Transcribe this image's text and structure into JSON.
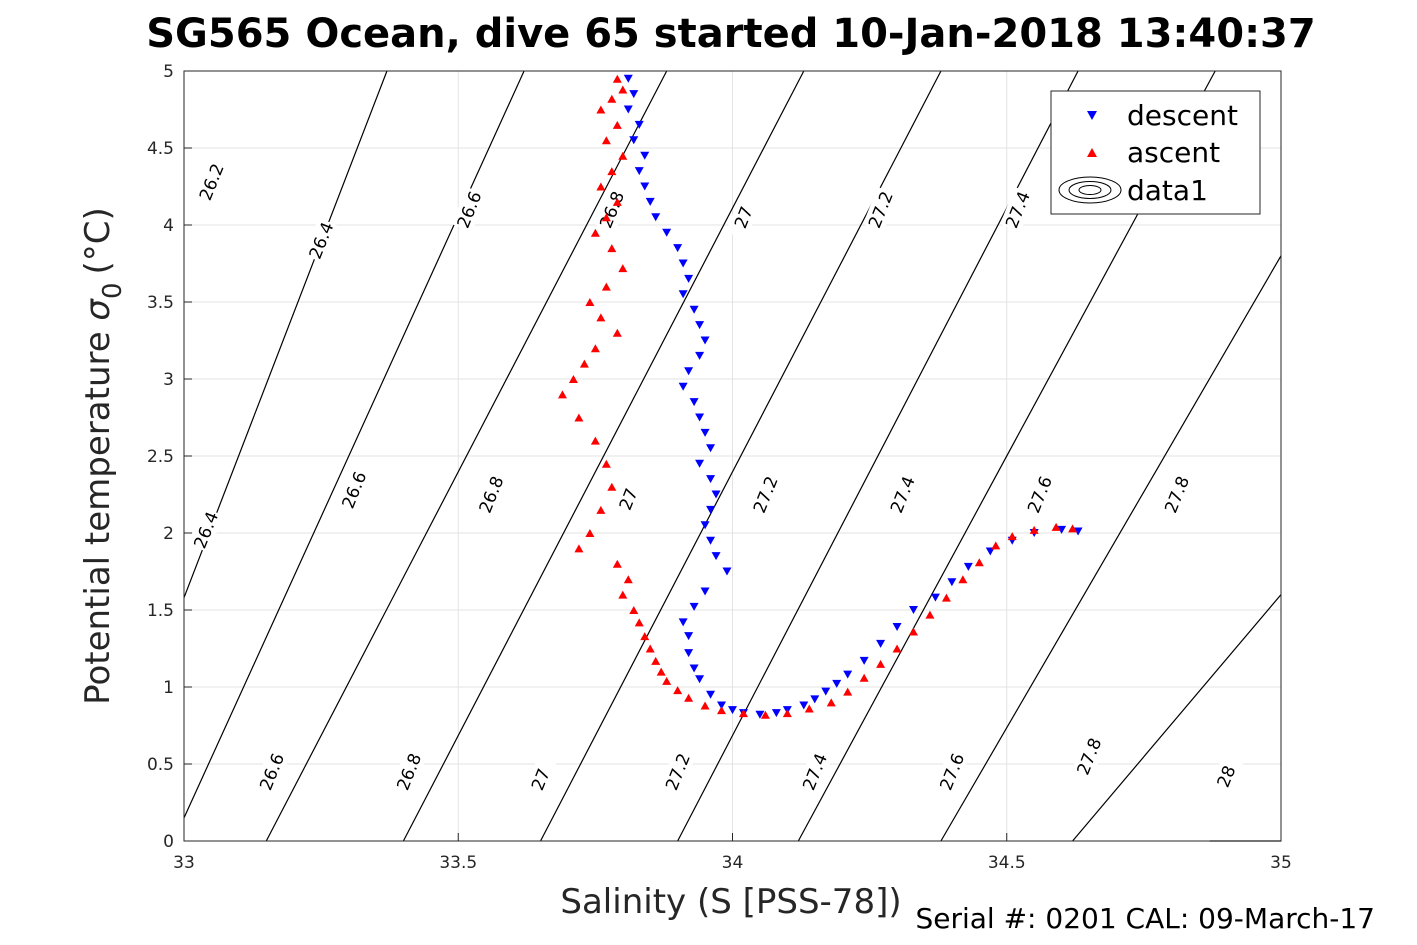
{
  "chart_data": {
    "type": "scatter",
    "title": "SG565 Ocean, dive 65 started 10-Jan-2018 13:40:37",
    "xlabel": "Salinity (S [PSS-78])",
    "ylabel": "Potential temperature",
    "ylabel_symbol": "σ",
    "ylabel_subscript": "0",
    "ylabel_unit": "(°C)",
    "footer": "Serial #: 0201  CAL: 09-March-17",
    "xlim": [
      33,
      35
    ],
    "ylim": [
      0,
      5
    ],
    "xticks": [
      "33",
      "33.5",
      "34",
      "34.5",
      "35"
    ],
    "xtick_values": [
      33,
      33.5,
      34,
      34.5,
      35
    ],
    "yticks": [
      "0",
      "0.5",
      "1",
      "1.5",
      "2",
      "2.5",
      "3",
      "3.5",
      "4",
      "4.5",
      "5"
    ],
    "ytick_values": [
      0,
      0.5,
      1,
      1.5,
      2,
      2.5,
      3,
      3.5,
      4,
      4.5,
      5
    ],
    "grid": true,
    "legend_position": "top-right",
    "legend": [
      "descent",
      "ascent",
      "data1"
    ],
    "colors": {
      "descent": "#0000ff",
      "ascent": "#ff0000",
      "contour": "#000000",
      "grid": "#e3e3e3"
    },
    "contours": [
      {
        "sigma": "26.2",
        "lines": [
          [
            33.37,
            5.0
          ],
          [
            33.0,
            1.58
          ]
        ]
      },
      {
        "sigma": "26.4",
        "lines": [
          [
            33.62,
            5.0
          ],
          [
            33.0,
            0.15
          ]
        ]
      },
      {
        "sigma": "26.6",
        "lines": [
          [
            33.88,
            5.0
          ],
          [
            33.15,
            0.0
          ]
        ]
      },
      {
        "sigma": "26.8",
        "lines": [
          [
            34.13,
            5.0
          ],
          [
            33.4,
            0.0
          ]
        ]
      },
      {
        "sigma": "27",
        "lines": [
          [
            34.38,
            5.0
          ],
          [
            33.65,
            0.0
          ]
        ]
      },
      {
        "sigma": "27.2",
        "lines": [
          [
            34.63,
            5.0
          ],
          [
            33.9,
            0.0
          ]
        ]
      },
      {
        "sigma": "27.4",
        "lines": [
          [
            34.88,
            5.0
          ],
          [
            34.12,
            0.0
          ]
        ]
      },
      {
        "sigma": "27.6",
        "lines": [
          [
            35.0,
            3.8
          ],
          [
            34.38,
            0.0
          ]
        ]
      },
      {
        "sigma": "27.8",
        "lines": [
          [
            35.0,
            1.6
          ],
          [
            34.62,
            0.0
          ]
        ]
      },
      {
        "sigma": "28",
        "lines": [
          [
            35.0,
            0.0
          ],
          [
            34.87,
            0.0
          ]
        ]
      }
    ],
    "contour_labels": [
      {
        "text": "26.2",
        "s": 33.05,
        "t": 4.28
      },
      {
        "text": "26.4",
        "s": 33.25,
        "t": 3.9
      },
      {
        "text": "26.6",
        "s": 33.52,
        "t": 4.1
      },
      {
        "text": "26.8",
        "s": 33.78,
        "t": 4.1
      },
      {
        "text": "27",
        "s": 34.02,
        "t": 4.05
      },
      {
        "text": "27.2",
        "s": 34.27,
        "t": 4.1
      },
      {
        "text": "27.4",
        "s": 34.52,
        "t": 4.1
      },
      {
        "text": "26.4",
        "s": 33.04,
        "t": 2.02
      },
      {
        "text": "26.6",
        "s": 33.31,
        "t": 2.28
      },
      {
        "text": "26.8",
        "s": 33.56,
        "t": 2.25
      },
      {
        "text": "27",
        "s": 33.81,
        "t": 2.22
      },
      {
        "text": "27.2",
        "s": 34.06,
        "t": 2.25
      },
      {
        "text": "27.4",
        "s": 34.31,
        "t": 2.25
      },
      {
        "text": "27.6",
        "s": 34.56,
        "t": 2.25
      },
      {
        "text": "27.8",
        "s": 34.81,
        "t": 2.25
      },
      {
        "text": "26.6",
        "s": 33.16,
        "t": 0.45
      },
      {
        "text": "26.8",
        "s": 33.41,
        "t": 0.45
      },
      {
        "text": "27",
        "s": 33.65,
        "t": 0.4
      },
      {
        "text": "27.2",
        "s": 33.9,
        "t": 0.45
      },
      {
        "text": "27.4",
        "s": 34.15,
        "t": 0.45
      },
      {
        "text": "27.6",
        "s": 34.4,
        "t": 0.45
      },
      {
        "text": "27.8",
        "s": 34.65,
        "t": 0.55
      },
      {
        "text": "28",
        "s": 34.9,
        "t": 0.42
      }
    ],
    "series": [
      {
        "name": "descent",
        "marker": "triangle-down",
        "x": [
          33.81,
          33.82,
          33.81,
          33.83,
          33.82,
          33.84,
          33.83,
          33.84,
          33.85,
          33.86,
          33.88,
          33.9,
          33.91,
          33.92,
          33.91,
          33.93,
          33.94,
          33.95,
          33.94,
          33.92,
          33.91,
          33.93,
          33.94,
          33.95,
          33.96,
          33.94,
          33.96,
          33.97,
          33.96,
          33.95,
          33.96,
          33.97,
          33.99,
          33.95,
          33.93,
          33.91,
          33.92,
          33.92,
          33.93,
          33.94,
          33.96,
          33.98,
          34.0,
          34.02,
          34.05,
          34.08,
          34.1,
          34.13,
          34.15,
          34.17,
          34.19,
          34.21,
          34.24,
          34.27,
          34.3,
          34.33,
          34.37,
          34.4,
          34.43,
          34.47,
          34.51,
          34.55,
          34.6,
          34.63
        ],
        "y": [
          4.95,
          4.85,
          4.75,
          4.65,
          4.55,
          4.45,
          4.35,
          4.25,
          4.15,
          4.05,
          3.95,
          3.85,
          3.75,
          3.65,
          3.55,
          3.45,
          3.35,
          3.25,
          3.15,
          3.05,
          2.95,
          2.85,
          2.75,
          2.65,
          2.55,
          2.45,
          2.35,
          2.25,
          2.15,
          2.05,
          1.95,
          1.85,
          1.75,
          1.62,
          1.52,
          1.42,
          1.33,
          1.22,
          1.12,
          1.05,
          0.95,
          0.88,
          0.85,
          0.83,
          0.82,
          0.83,
          0.85,
          0.88,
          0.92,
          0.97,
          1.02,
          1.08,
          1.17,
          1.28,
          1.39,
          1.5,
          1.58,
          1.68,
          1.78,
          1.88,
          1.95,
          2.0,
          2.02,
          2.01
        ]
      },
      {
        "name": "ascent",
        "marker": "triangle-up",
        "x": [
          33.79,
          33.8,
          33.78,
          33.76,
          33.79,
          33.77,
          33.8,
          33.78,
          33.76,
          33.79,
          33.77,
          33.75,
          33.78,
          33.8,
          33.77,
          33.74,
          33.76,
          33.79,
          33.75,
          33.73,
          33.71,
          33.69,
          33.72,
          33.75,
          33.77,
          33.78,
          33.76,
          33.74,
          33.72,
          33.79,
          33.81,
          33.8,
          33.82,
          33.83,
          33.84,
          33.85,
          33.86,
          33.87,
          33.88,
          33.9,
          33.92,
          33.95,
          33.98,
          34.02,
          34.06,
          34.1,
          34.14,
          34.18,
          34.21,
          34.24,
          34.27,
          34.3,
          34.33,
          34.36,
          34.39,
          34.42,
          34.45,
          34.48,
          34.51,
          34.55,
          34.59,
          34.62
        ],
        "y": [
          4.95,
          4.88,
          4.82,
          4.75,
          4.65,
          4.55,
          4.45,
          4.35,
          4.25,
          4.15,
          4.05,
          3.95,
          3.85,
          3.72,
          3.6,
          3.5,
          3.4,
          3.3,
          3.2,
          3.1,
          3.0,
          2.9,
          2.75,
          2.6,
          2.45,
          2.3,
          2.15,
          2.0,
          1.9,
          1.8,
          1.7,
          1.6,
          1.5,
          1.42,
          1.33,
          1.25,
          1.17,
          1.1,
          1.04,
          0.98,
          0.93,
          0.88,
          0.85,
          0.83,
          0.82,
          0.83,
          0.86,
          0.9,
          0.97,
          1.06,
          1.15,
          1.25,
          1.36,
          1.47,
          1.58,
          1.7,
          1.81,
          1.92,
          1.98,
          2.02,
          2.04,
          2.03
        ]
      }
    ]
  }
}
